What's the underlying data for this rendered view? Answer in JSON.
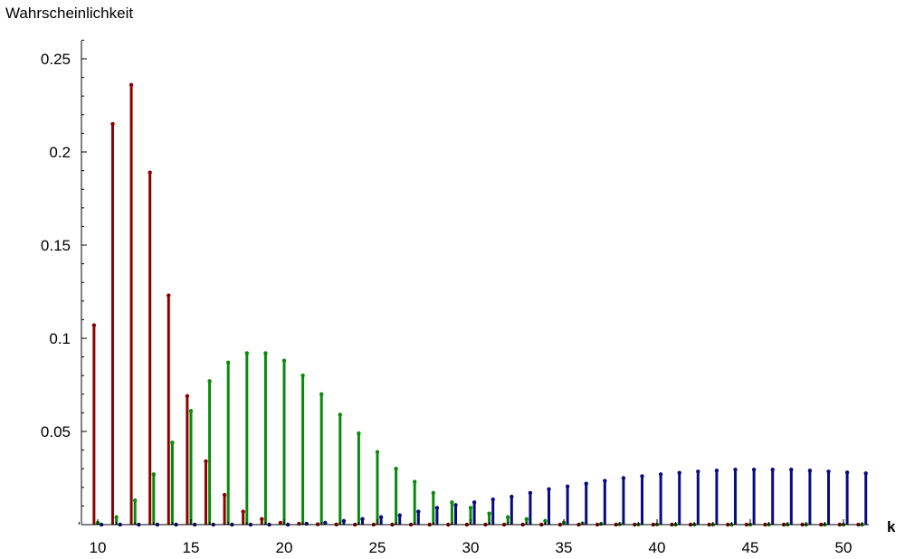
{
  "chart_data": {
    "type": "bar",
    "xlabel": "k",
    "ylabel": "Wahrscheinlichkeit",
    "xlim": [
      9,
      51
    ],
    "ylim": [
      0,
      0.26
    ],
    "x_ticks": [
      10,
      15,
      20,
      25,
      30,
      35,
      40,
      45,
      50
    ],
    "y_ticks": [
      0.05,
      0.1,
      0.15,
      0.2,
      0.25
    ],
    "y_tick_labels": [
      "0.05",
      "0.1",
      "0.15",
      "0.2",
      "0.25"
    ],
    "grid": false,
    "series": [
      {
        "color": "#8b0000",
        "offset": -0.2,
        "x": [
          10,
          11,
          12,
          13,
          14,
          15,
          16,
          17,
          18,
          19,
          20,
          21,
          22,
          23,
          24,
          25,
          26,
          27,
          28,
          29,
          30,
          31,
          32,
          33,
          34,
          35,
          36,
          37,
          38,
          39,
          40,
          41,
          42,
          43,
          44,
          45,
          46,
          47,
          48,
          49,
          50,
          51
        ],
        "values": [
          0.107,
          0.215,
          0.236,
          0.189,
          0.123,
          0.069,
          0.034,
          0.016,
          0.007,
          0.003,
          0.001,
          0.0005,
          0.0002,
          0.0001,
          0,
          0,
          0,
          0,
          0,
          0,
          0,
          0,
          0,
          0,
          0,
          0,
          0,
          0,
          0,
          0,
          0,
          0,
          0,
          0,
          0,
          0,
          0,
          0,
          0,
          0,
          0,
          0
        ]
      },
      {
        "color": "#0a8a0a",
        "offset": 0.0,
        "x": [
          10,
          11,
          12,
          13,
          14,
          15,
          16,
          17,
          18,
          19,
          20,
          21,
          22,
          23,
          24,
          25,
          26,
          27,
          28,
          29,
          30,
          31,
          32,
          33,
          34,
          35,
          36,
          37,
          38,
          39,
          40,
          41,
          42,
          43,
          44,
          45,
          46,
          47,
          48,
          49,
          50,
          51
        ],
        "values": [
          0.001,
          0.004,
          0.013,
          0.027,
          0.044,
          0.061,
          0.077,
          0.087,
          0.092,
          0.092,
          0.088,
          0.08,
          0.07,
          0.059,
          0.049,
          0.039,
          0.03,
          0.023,
          0.017,
          0.012,
          0.009,
          0.006,
          0.004,
          0.003,
          0.002,
          0.001,
          0.0007,
          0.0004,
          0.0002,
          0.0001,
          0.0001,
          0,
          0,
          0,
          0,
          0,
          0,
          0,
          0,
          0,
          0,
          0
        ]
      },
      {
        "color": "#0a0a80",
        "offset": 0.2,
        "x": [
          10,
          11,
          12,
          13,
          14,
          15,
          16,
          17,
          18,
          19,
          20,
          21,
          22,
          23,
          24,
          25,
          26,
          27,
          28,
          29,
          30,
          31,
          32,
          33,
          34,
          35,
          36,
          37,
          38,
          39,
          40,
          41,
          42,
          43,
          44,
          45,
          46,
          47,
          48,
          49,
          50,
          51
        ],
        "values": [
          0,
          0,
          0,
          0,
          0,
          0,
          0,
          0,
          0,
          0,
          0,
          0.0005,
          0.001,
          0.002,
          0.003,
          0.004,
          0.005,
          0.007,
          0.009,
          0.0105,
          0.012,
          0.0135,
          0.015,
          0.017,
          0.019,
          0.0205,
          0.022,
          0.0235,
          0.025,
          0.026,
          0.027,
          0.0278,
          0.0285,
          0.029,
          0.0295,
          0.0295,
          0.0295,
          0.0295,
          0.029,
          0.0285,
          0.028,
          0.0275
        ]
      }
    ]
  }
}
